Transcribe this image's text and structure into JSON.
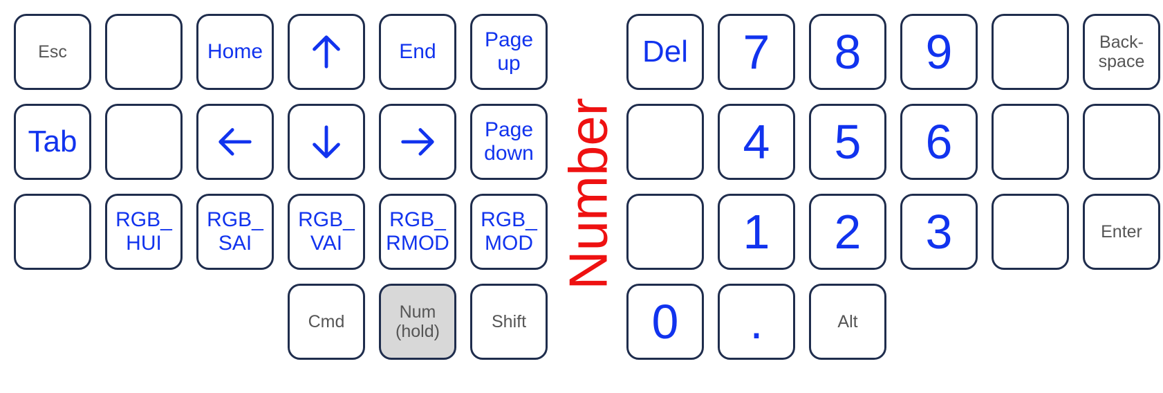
{
  "layer_title": "Number",
  "colors": {
    "key_text_blue": "#1133ee",
    "key_text_gray": "#555555",
    "layer_title": "#ee1111",
    "key_border": "#1f2d4d",
    "held_key_fill": "#d8d8d8"
  },
  "left": {
    "esc": "Esc",
    "home": "Home",
    "up": "up-arrow-icon",
    "end": "End",
    "page_up": [
      "Page",
      "up"
    ],
    "tab": "Tab",
    "left": "left-arrow-icon",
    "down": "down-arrow-icon",
    "right": "right-arrow-icon",
    "page_down": [
      "Page",
      "down"
    ],
    "rgb_hui": [
      "RGB_",
      "HUI"
    ],
    "rgb_sai": [
      "RGB_",
      "SAI"
    ],
    "rgb_vai": [
      "RGB_",
      "VAI"
    ],
    "rgb_rmod": [
      "RGB_",
      "RMOD"
    ],
    "rgb_mod": [
      "RGB_",
      "MOD"
    ],
    "cmd": "Cmd",
    "num_hold": [
      "Num",
      "(hold)"
    ],
    "shift": "Shift"
  },
  "right": {
    "del": "Del",
    "n7": "7",
    "n8": "8",
    "n9": "9",
    "backspace": [
      "Back-",
      "space"
    ],
    "n4": "4",
    "n5": "5",
    "n6": "6",
    "n1": "1",
    "n2": "2",
    "n3": "3",
    "enter": "Enter",
    "n0": "0",
    "dot": ".",
    "alt": "Alt"
  }
}
